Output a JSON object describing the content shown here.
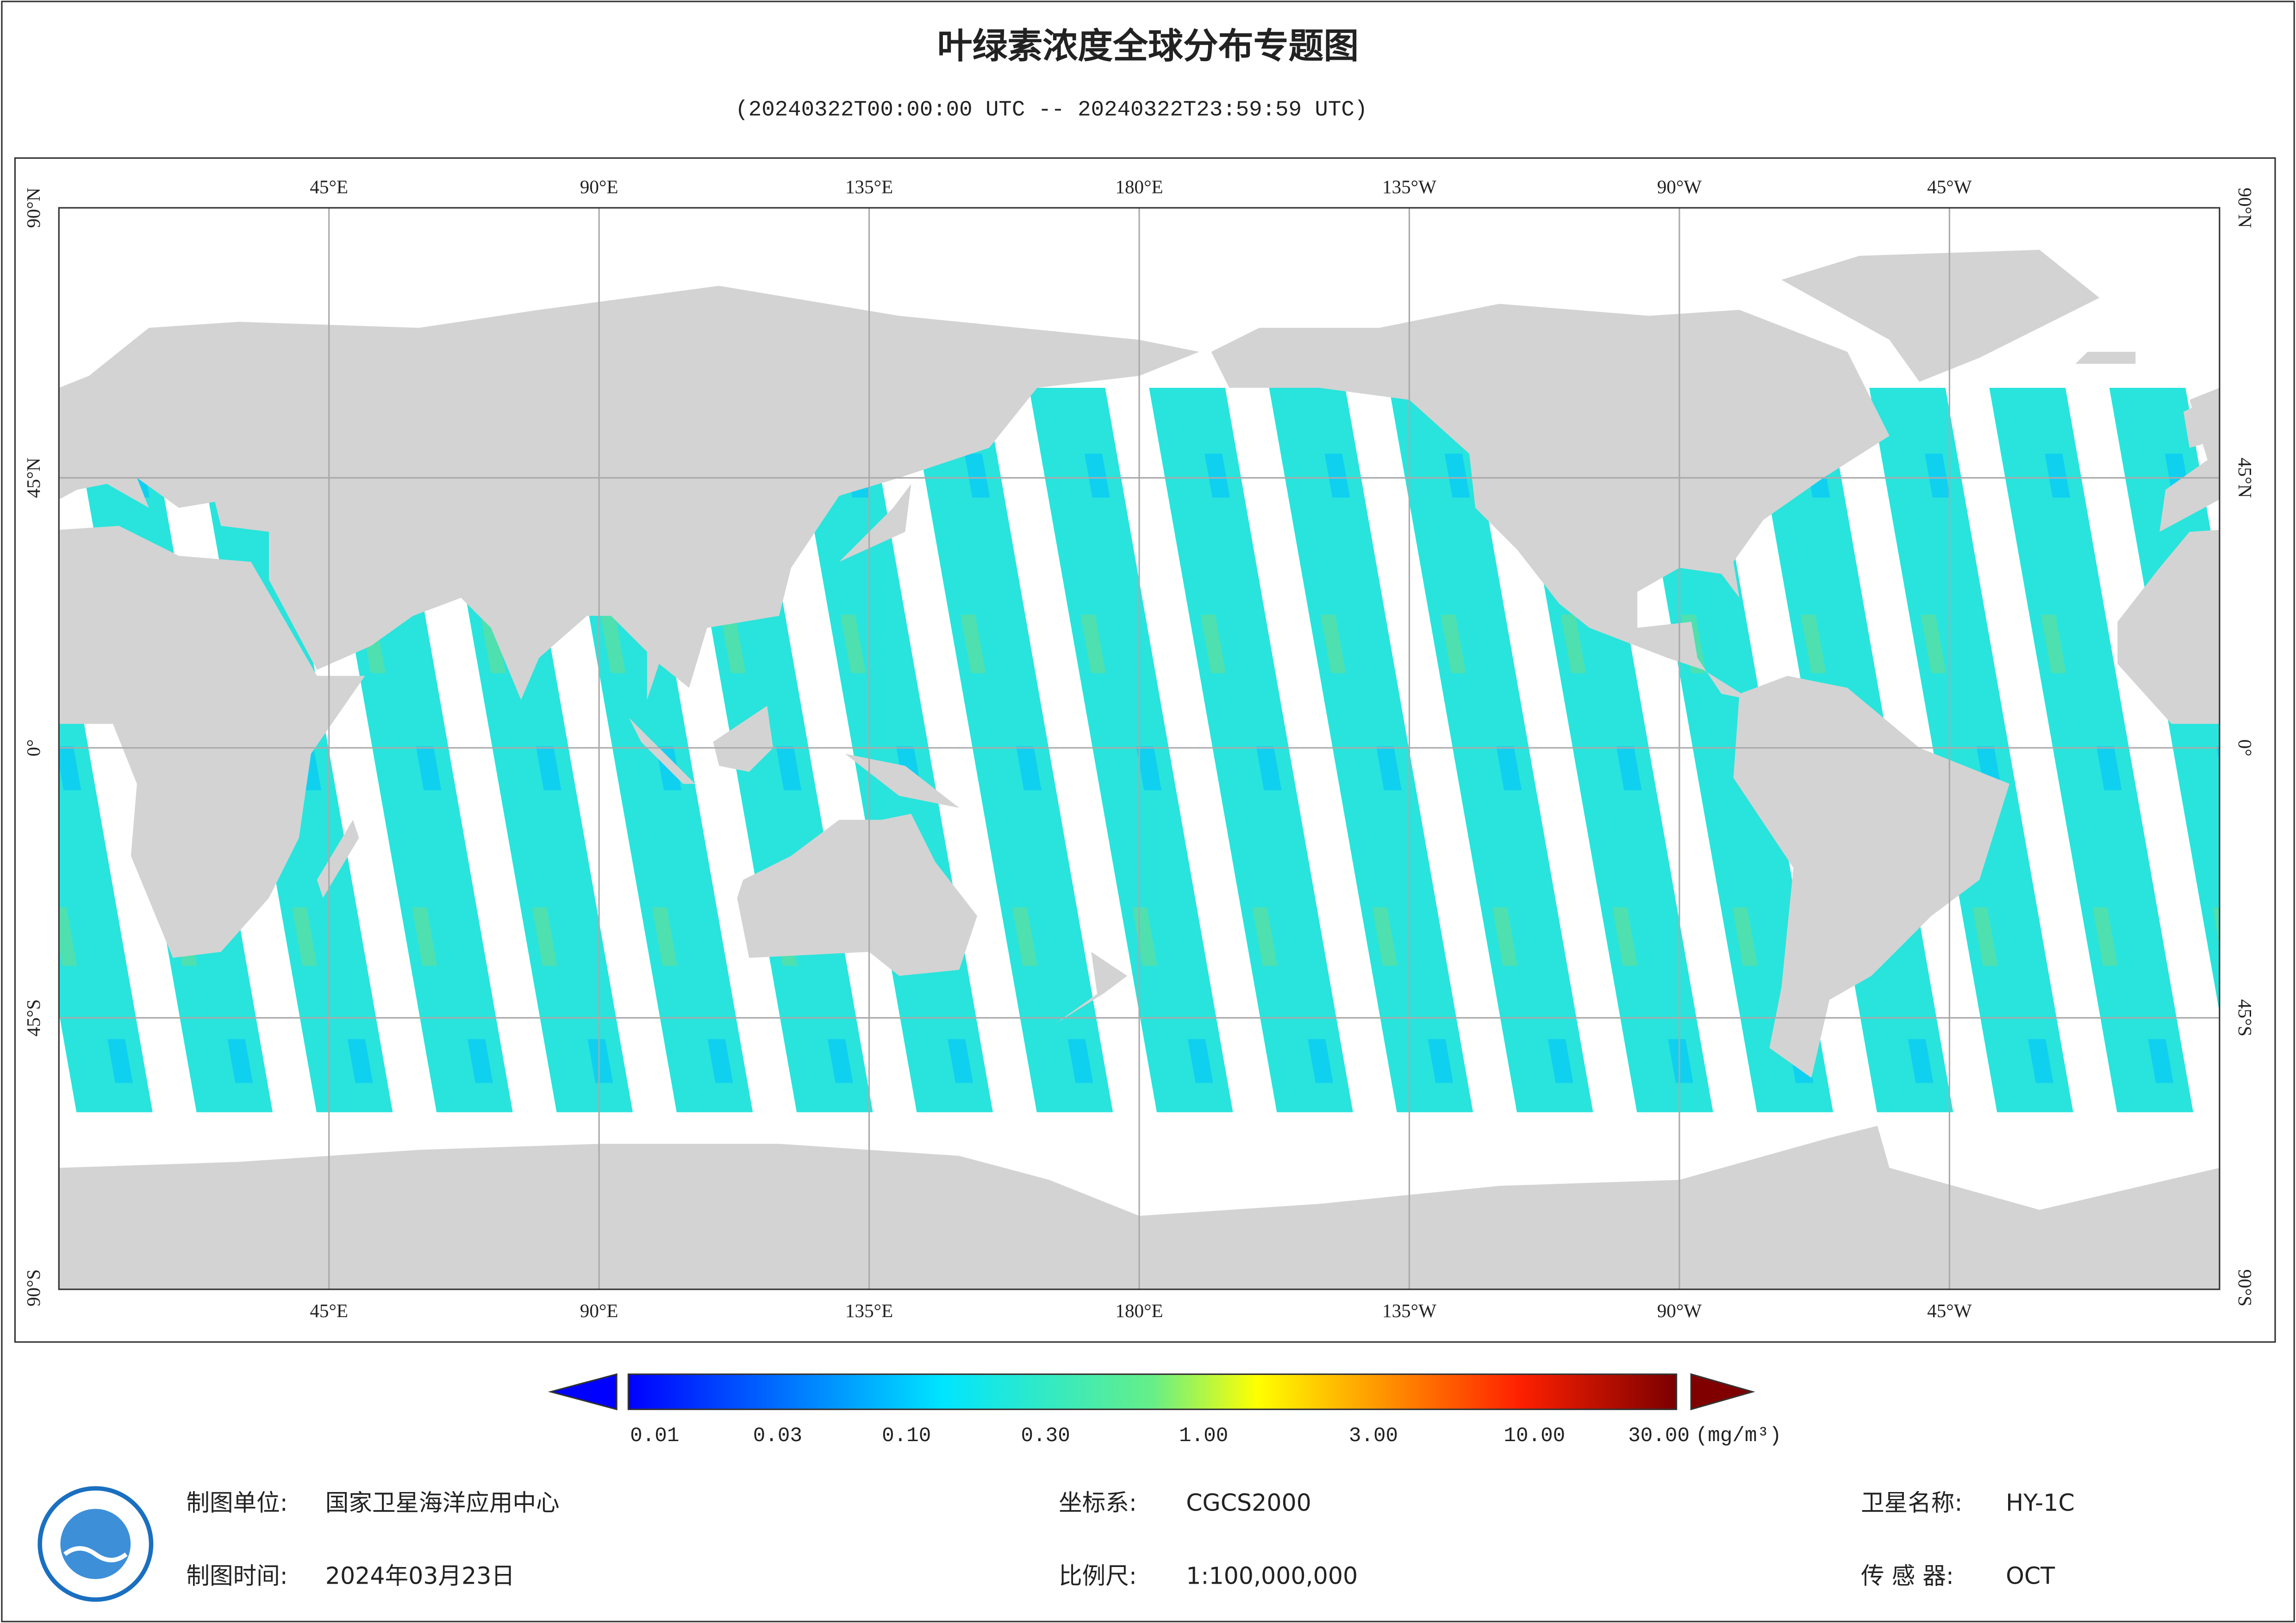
{
  "title": "叶绿素浓度全球分布专题图",
  "subtitle": "(20240322T00:00:00 UTC -- 20240322T23:59:59 UTC)",
  "map": {
    "lon_labels": [
      "45°E",
      "90°E",
      "135°E",
      "180°E",
      "135°W",
      "90°W",
      "45°W"
    ],
    "lat_labels": [
      "90°N",
      "45°N",
      "0°",
      "45°S",
      "90°S"
    ]
  },
  "colorbar": {
    "labels": [
      "0.01",
      "0.03",
      "0.10",
      "0.30",
      "1.00",
      "3.00",
      "10.00",
      "30.00"
    ],
    "unit": "(mg/m³)"
  },
  "footer": {
    "items": [
      {
        "label": "制图单位:",
        "value": "国家卫星海洋应用中心"
      },
      {
        "label": "坐标系:",
        "value": "CGCS2000"
      },
      {
        "label": "卫星名称:",
        "value": "HY-1C"
      },
      {
        "label": "制图时间:",
        "value": "2024年03月23日"
      },
      {
        "label": "比例尺:",
        "value": "1:100,000,000"
      },
      {
        "label": "传 感 器:",
        "value": "OCT"
      }
    ]
  }
}
